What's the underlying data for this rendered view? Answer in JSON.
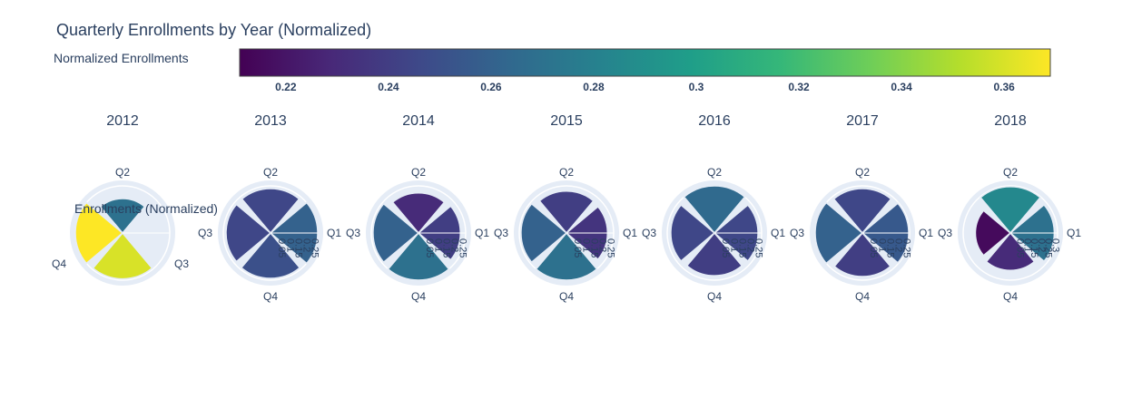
{
  "chart_data": {
    "type": "barpolar",
    "title": "Quarterly Enrollments by Year (Normalized)",
    "colorscale": "Viridis",
    "colorbar": {
      "title": "Normalized Enrollments",
      "range": [
        0.211,
        0.369
      ],
      "ticks": [
        "0.22",
        "0.24",
        "0.26",
        "0.28",
        "0.3",
        "0.32",
        "0.34",
        "0.36"
      ]
    },
    "radial_axis_title": "Enrollments (Normalized)",
    "quarters": [
      "Q1",
      "Q2",
      "Q3",
      "Q4"
    ],
    "panels": [
      {
        "year": "2012",
        "angle_labels": [
          "Q2",
          "Q3",
          "Q4"
        ],
        "radial_ticks": [],
        "values": [
          {
            "q": "Q2",
            "value": 0.27
          },
          {
            "q": "Q3",
            "value": 0.37
          },
          {
            "q": "Q4",
            "value": 0.36
          }
        ],
        "rmax": 0.37
      },
      {
        "year": "2013",
        "angle_labels": [
          "Q1",
          "Q2",
          "Q3",
          "Q4"
        ],
        "radial_ticks": [
          "0.05",
          "0.1",
          "0.15",
          "0.2",
          "0.25"
        ],
        "values": [
          {
            "q": "Q1",
            "value": 0.26
          },
          {
            "q": "Q2",
            "value": 0.245
          },
          {
            "q": "Q3",
            "value": 0.245
          },
          {
            "q": "Q4",
            "value": 0.25
          }
        ],
        "rmax": 0.26
      },
      {
        "year": "2014",
        "angle_labels": [
          "Q1",
          "Q2",
          "Q3",
          "Q4"
        ],
        "radial_ticks": [
          "0.05",
          "0.1",
          "0.15",
          "0.2",
          "0.25"
        ],
        "values": [
          {
            "q": "Q1",
            "value": 0.24
          },
          {
            "q": "Q2",
            "value": 0.23
          },
          {
            "q": "Q3",
            "value": 0.26
          },
          {
            "q": "Q4",
            "value": 0.27
          }
        ],
        "rmax": 0.27
      },
      {
        "year": "2015",
        "angle_labels": [
          "Q1",
          "Q2",
          "Q3",
          "Q4"
        ],
        "radial_ticks": [
          "0.05",
          "0.1",
          "0.15",
          "0.2",
          "0.25"
        ],
        "values": [
          {
            "q": "Q1",
            "value": 0.235
          },
          {
            "q": "Q2",
            "value": 0.24
          },
          {
            "q": "Q3",
            "value": 0.26
          },
          {
            "q": "Q4",
            "value": 0.27
          }
        ],
        "rmax": 0.27
      },
      {
        "year": "2016",
        "angle_labels": [
          "Q1",
          "Q2",
          "Q3",
          "Q4"
        ],
        "radial_ticks": [
          "0.05",
          "0.1",
          "0.15",
          "0.2",
          "0.25"
        ],
        "values": [
          {
            "q": "Q1",
            "value": 0.245
          },
          {
            "q": "Q2",
            "value": 0.265
          },
          {
            "q": "Q3",
            "value": 0.245
          },
          {
            "q": "Q4",
            "value": 0.24
          }
        ],
        "rmax": 0.265
      },
      {
        "year": "2017",
        "angle_labels": [
          "Q1",
          "Q2",
          "Q3",
          "Q4"
        ],
        "radial_ticks": [
          "0.05",
          "0.1",
          "0.15",
          "0.2",
          "0.25"
        ],
        "values": [
          {
            "q": "Q1",
            "value": 0.255
          },
          {
            "q": "Q2",
            "value": 0.245
          },
          {
            "q": "Q3",
            "value": 0.26
          },
          {
            "q": "Q4",
            "value": 0.24
          }
        ],
        "rmax": 0.26
      },
      {
        "year": "2018",
        "angle_labels": [
          "Q1",
          "Q2",
          "Q3",
          "Q4"
        ],
        "radial_ticks": [
          "0.05",
          "0.1",
          "0.15",
          "0.2",
          "0.25",
          "0.3"
        ],
        "values": [
          {
            "q": "Q1",
            "value": 0.27
          },
          {
            "q": "Q2",
            "value": 0.285
          },
          {
            "q": "Q3",
            "value": 0.215
          },
          {
            "q": "Q4",
            "value": 0.23
          }
        ],
        "rmax": 0.29
      }
    ]
  }
}
